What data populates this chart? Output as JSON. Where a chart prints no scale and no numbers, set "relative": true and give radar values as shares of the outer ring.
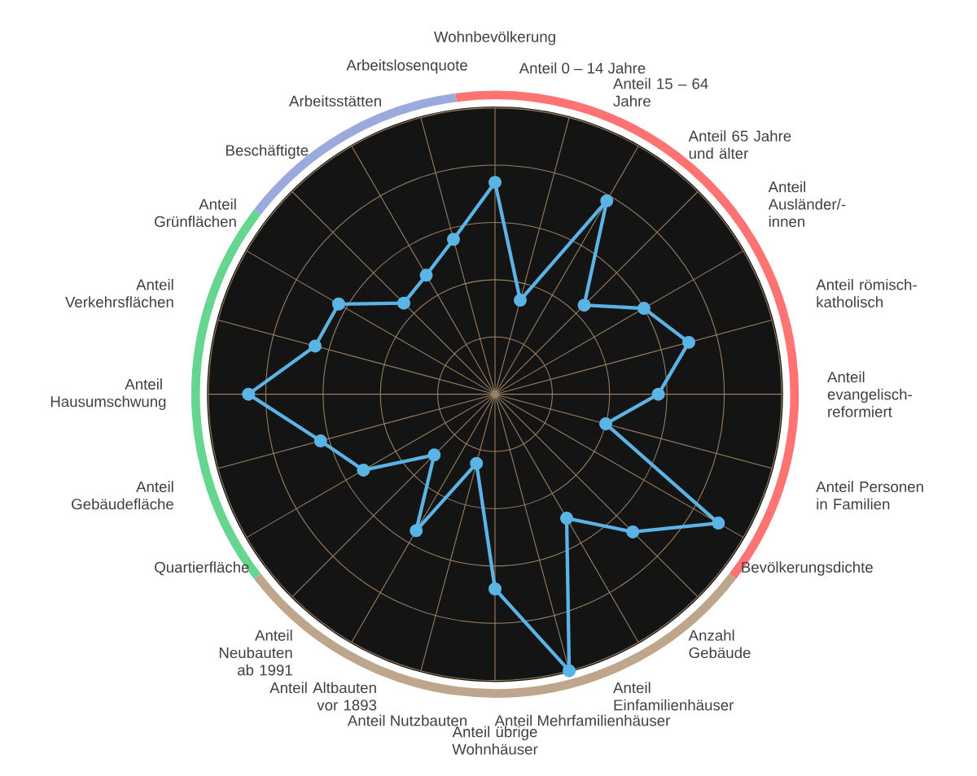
{
  "chart_data": {
    "type": "radar",
    "relative": true,
    "categories": [
      "Wohnbevölkerung",
      "Anteil 0 – 14 Jahre",
      "Anteil 15 – 64 Jahre",
      "Anteil 65 Jahre und älter",
      "Anteil Ausländer/-innen",
      "Anteil römisch-katholisch",
      "Anteil evangelisch-reformiert",
      "Anteil Personen in Familien",
      "Bevölkerungsdichte",
      "Anzahl Gebäude",
      "Anteil Einfamilienhäuser",
      "Anteil Mehrfamilienhäuser",
      "Anteil übrige Wohnhäuser",
      "Anteil Nutzbauten",
      "Anteil Altbauten vor 1893",
      "Anteil Neubauten ab 1991",
      "Quartierfläche",
      "Anteil Gebäudefläche",
      "Anteil Hausumschwung",
      "Anteil Verkehrsflächen",
      "Anteil Grünflächen",
      "Beschäftigte",
      "Arbeitsstätten",
      "Arbeitslosenquote"
    ],
    "series": [
      {
        "color": "#5ab4e5",
        "values": [
          0.74,
          0.34,
          0.78,
          0.44,
          0.6,
          0.7,
          0.57,
          0.4,
          0.9,
          0.68,
          0.5,
          1,
          0.68,
          0.25,
          0.55,
          0.3,
          0.53,
          0.63,
          0.86,
          0.65,
          0.63,
          0.45,
          0.48,
          0.56
        ]
      }
    ],
    "grid": true,
    "marker": "circle",
    "line_style": "solid"
  }
}
